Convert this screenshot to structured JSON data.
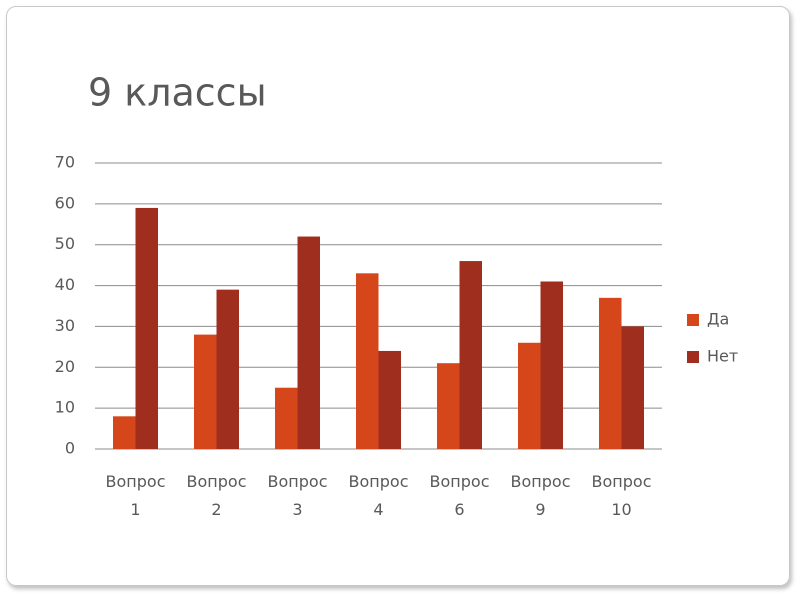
{
  "chart_data": {
    "type": "bar",
    "title": "9 классы",
    "categories": [
      "Вопрос 1",
      "Вопрос 2",
      "Вопрос 3",
      "Вопрос 4",
      "Вопрос 6",
      "Вопрос 9",
      "Вопрос 10"
    ],
    "series": [
      {
        "name": "Да",
        "color": "#d5471b",
        "values": [
          8,
          28,
          15,
          43,
          21,
          26,
          37
        ]
      },
      {
        "name": "Нет",
        "color": "#a02e1f",
        "values": [
          59,
          39,
          52,
          24,
          46,
          41,
          30
        ]
      }
    ],
    "ylim": [
      0,
      70
    ],
    "yticks": [
      0,
      10,
      20,
      30,
      40,
      50,
      60,
      70
    ],
    "grid": true,
    "legend": "right"
  }
}
